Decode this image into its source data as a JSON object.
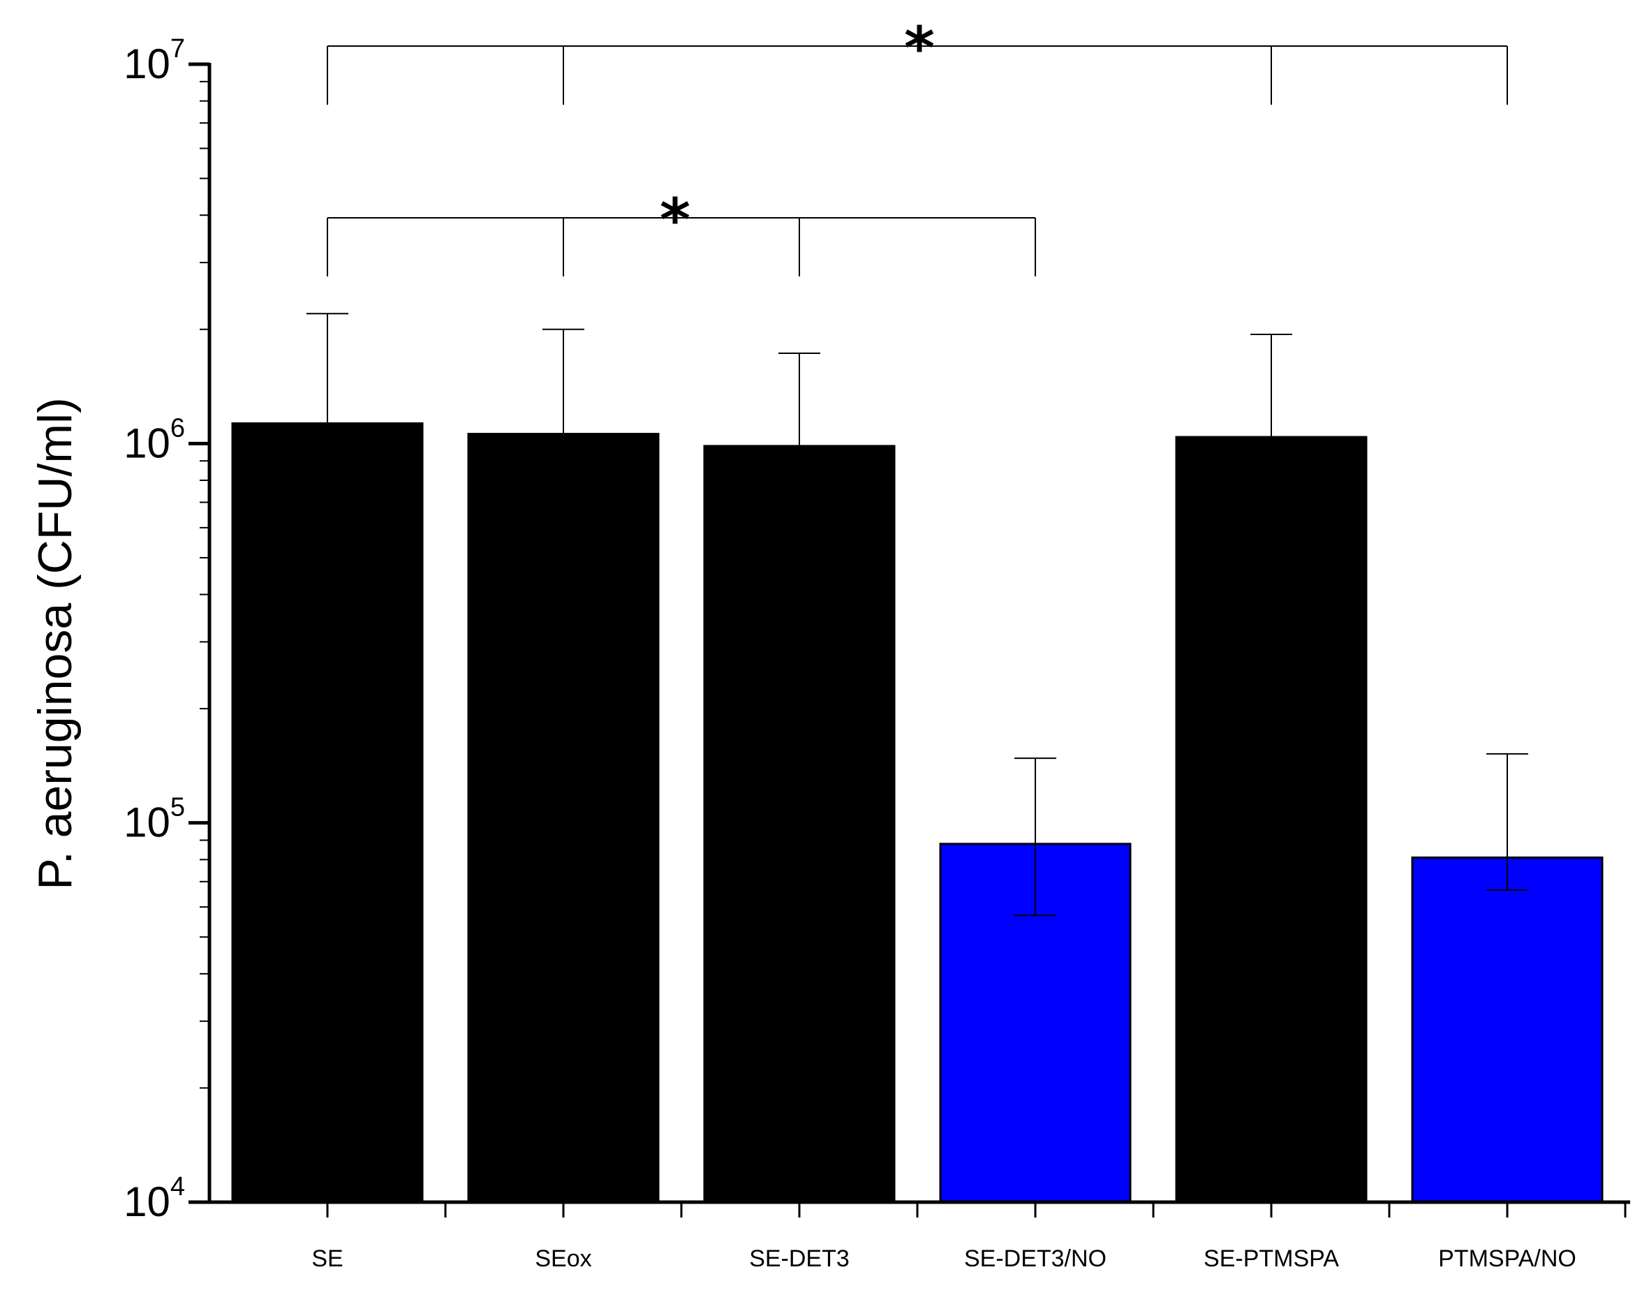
{
  "chart_data": {
    "type": "bar",
    "title": "",
    "xlabel": "",
    "ylabel": "P. aeruginosa (CFU/ml)",
    "yscale": "log",
    "ylim": [
      10000,
      10000000
    ],
    "yticks": [
      {
        "base": "10",
        "exp": "4",
        "value": 10000
      },
      {
        "base": "10",
        "exp": "5",
        "value": 100000
      },
      {
        "base": "10",
        "exp": "6",
        "value": 1000000
      },
      {
        "base": "10",
        "exp": "7",
        "value": 10000000
      }
    ],
    "categories": [
      "SE",
      "SEox",
      "SE-DET3",
      "SE-DET3/NO",
      "SE-PTMSPA",
      "PTMSPA/NO"
    ],
    "values": [
      1130000,
      1060000,
      985000,
      88000,
      1040000,
      81000
    ],
    "error_upper": [
      2200000,
      2000000,
      1730000,
      148000,
      1940000,
      152000
    ],
    "error_lower": [
      1130000,
      1060000,
      985000,
      31000,
      1040000,
      14500
    ],
    "colors": [
      "#000000",
      "#000000",
      "#000000",
      "#0000ff",
      "#000000",
      "#0000ff"
    ],
    "significance": [
      {
        "label": "*",
        "from": 0,
        "to": 5,
        "drops": [
          0,
          1,
          4,
          5
        ],
        "level": 10000000
      },
      {
        "label": "*",
        "from": 0,
        "to": 3,
        "drops": [
          0,
          1,
          2,
          3
        ],
        "level": 3550000
      }
    ]
  }
}
